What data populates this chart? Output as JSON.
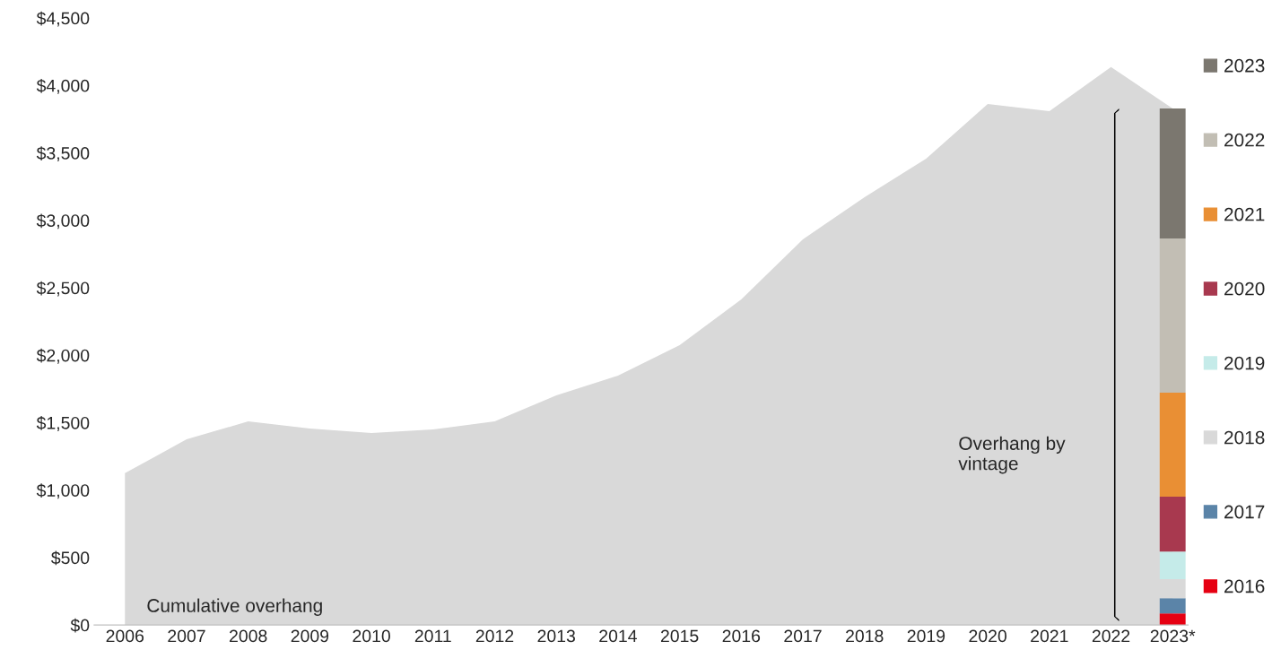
{
  "chart_data": {
    "type": "bar",
    "legend": "right",
    "categories": [
      "2006",
      "2007",
      "2008",
      "2009",
      "2010",
      "2011",
      "2012",
      "2013",
      "2014",
      "2015",
      "2016",
      "2017",
      "2018",
      "2019",
      "2020",
      "2021",
      "2022",
      "2023*"
    ],
    "ylim": [
      0,
      4500
    ],
    "yticks": [
      {
        "value": 0,
        "label": "$0"
      },
      {
        "value": 500,
        "label": "$500"
      },
      {
        "value": 1000,
        "label": "$1,000"
      },
      {
        "value": 1500,
        "label": "$1,500"
      },
      {
        "value": 2000,
        "label": "$2,000"
      },
      {
        "value": 2500,
        "label": "$2,500"
      },
      {
        "value": 3000,
        "label": "$3,000"
      },
      {
        "value": 3500,
        "label": "$3,500"
      },
      {
        "value": 4000,
        "label": "$4,000"
      },
      {
        "value": 4500,
        "label": "$4,500"
      }
    ],
    "grid": false,
    "annotations": [
      "Overhang by\nvintage"
    ],
    "series": [
      {
        "name": "Cumulative overhang",
        "type": "area",
        "color": "#d9d9d9",
        "values": [
          1125,
          1376,
          1509,
          1456,
          1423,
          1450,
          1509,
          1702,
          1848,
          2074,
          2414,
          2859,
          3172,
          3457,
          3863,
          3810,
          4136,
          3830
        ]
      },
      {
        "name": "2016",
        "color": "#e60012",
        "values": [
          null,
          null,
          null,
          null,
          null,
          null,
          null,
          null,
          null,
          null,
          null,
          null,
          null,
          null,
          null,
          null,
          null,
          86
        ],
        "base": [
          null,
          null,
          null,
          null,
          null,
          null,
          null,
          null,
          null,
          null,
          null,
          null,
          null,
          null,
          null,
          null,
          null,
          0
        ]
      },
      {
        "name": "2017",
        "color": "#5b84a8",
        "values": [
          null,
          null,
          null,
          null,
          null,
          null,
          null,
          null,
          null,
          null,
          null,
          null,
          null,
          null,
          null,
          null,
          null,
          113
        ],
        "base": [
          null,
          null,
          null,
          null,
          null,
          null,
          null,
          null,
          null,
          null,
          null,
          null,
          null,
          null,
          null,
          null,
          null,
          86
        ]
      },
      {
        "name": "2018",
        "color": "#d9d9d9",
        "values": [
          null,
          null,
          null,
          null,
          null,
          null,
          null,
          null,
          null,
          null,
          null,
          null,
          null,
          null,
          null,
          null,
          null,
          140
        ],
        "base": [
          null,
          null,
          null,
          null,
          null,
          null,
          null,
          null,
          null,
          null,
          null,
          null,
          null,
          null,
          null,
          null,
          null,
          199
        ]
      },
      {
        "name": "2019",
        "color": "#c5ebe9",
        "values": [
          null,
          null,
          null,
          null,
          null,
          null,
          null,
          null,
          null,
          null,
          null,
          null,
          null,
          null,
          null,
          null,
          null,
          206
        ],
        "base": [
          null,
          null,
          null,
          null,
          null,
          null,
          null,
          null,
          null,
          null,
          null,
          null,
          null,
          null,
          null,
          null,
          null,
          339
        ]
      },
      {
        "name": "2020",
        "color": "#a8394f",
        "values": [
          null,
          null,
          null,
          null,
          null,
          null,
          null,
          null,
          null,
          null,
          null,
          null,
          null,
          null,
          null,
          null,
          null,
          406
        ],
        "base": [
          null,
          null,
          null,
          null,
          null,
          null,
          null,
          null,
          null,
          null,
          null,
          null,
          null,
          null,
          null,
          null,
          null,
          545
        ]
      },
      {
        "name": "2021",
        "color": "#e98f34",
        "values": [
          null,
          null,
          null,
          null,
          null,
          null,
          null,
          null,
          null,
          null,
          null,
          null,
          null,
          null,
          null,
          null,
          null,
          771
        ],
        "base": [
          null,
          null,
          null,
          null,
          null,
          null,
          null,
          null,
          null,
          null,
          null,
          null,
          null,
          null,
          null,
          null,
          null,
          951
        ]
      },
      {
        "name": "2022",
        "color": "#c2beb4",
        "values": [
          null,
          null,
          null,
          null,
          null,
          null,
          null,
          null,
          null,
          null,
          null,
          null,
          null,
          null,
          null,
          null,
          null,
          1144
        ],
        "base": [
          null,
          null,
          null,
          null,
          null,
          null,
          null,
          null,
          null,
          null,
          null,
          null,
          null,
          null,
          null,
          null,
          null,
          1722
        ]
      },
      {
        "name": "2023",
        "color": "#7b776f",
        "values": [
          null,
          null,
          null,
          null,
          null,
          null,
          null,
          null,
          null,
          null,
          null,
          null,
          null,
          null,
          null,
          null,
          null,
          964
        ],
        "base": [
          null,
          null,
          null,
          null,
          null,
          null,
          null,
          null,
          null,
          null,
          null,
          null,
          null,
          null,
          null,
          null,
          null,
          2866
        ]
      }
    ]
  }
}
